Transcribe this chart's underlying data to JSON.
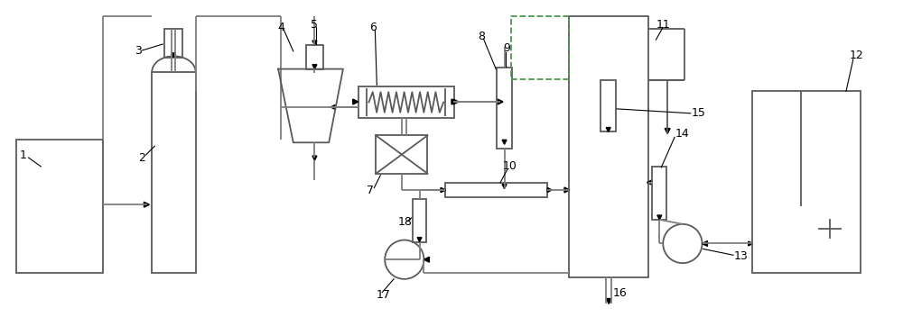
{
  "bg_color": "#ffffff",
  "lc": "#7f7f7f",
  "clc": "#5a5a5a",
  "dc": "#4a9a4a",
  "lw": 1.3,
  "arrow_color": "#1a1a1a"
}
